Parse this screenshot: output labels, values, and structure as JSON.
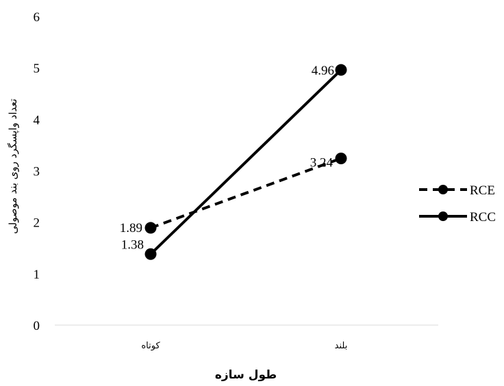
{
  "chart_data": {
    "type": "line",
    "categories": [
      "کوتاه",
      "بلند"
    ],
    "series": [
      {
        "name": "RCE",
        "values": [
          1.89,
          3.24
        ],
        "style": "dashed",
        "color": "#000000"
      },
      {
        "name": "RCC",
        "values": [
          1.38,
          4.96
        ],
        "style": "solid",
        "color": "#000000"
      }
    ],
    "data_labels": [
      {
        "series": "RCE",
        "labels": [
          "1.89",
          "3.24"
        ]
      },
      {
        "series": "RCC",
        "labels": [
          "1.38",
          "4.96"
        ]
      }
    ],
    "y_ticks": [
      "0",
      "1",
      "2",
      "3",
      "4",
      "5",
      "6"
    ],
    "ylim": [
      0,
      6
    ],
    "xlabel": "طول سازه",
    "ylabel": "تعداد واپسگرد روی بند موصولی",
    "grid": false,
    "legend": "right"
  }
}
